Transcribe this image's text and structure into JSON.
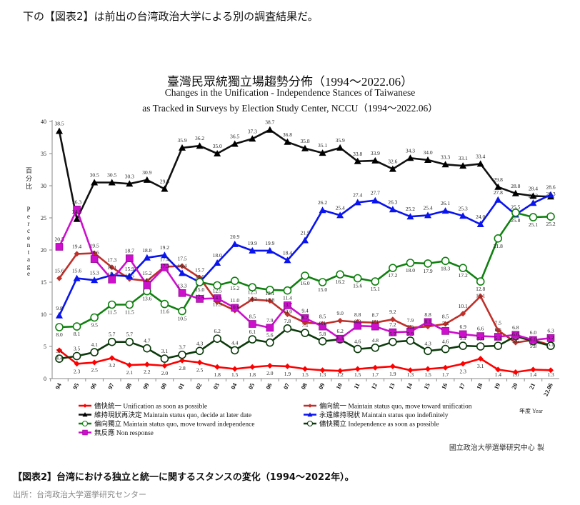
{
  "article": {
    "intro": "下の【図表2】は前出の台湾政治大学による別の調査結果だ。",
    "caption": "【図表2】台湾における独立と統一に関するスタンスの変化（1994〜2022年）。",
    "source": "出所：台湾政治大学選挙研究センター"
  },
  "chart_data": {
    "type": "line",
    "title": "臺灣民眾統獨立場趨勢分佈（1994～2022.06）",
    "subtitle_line1": "Changes in the Unification - Independence Stances of Taiwanese",
    "subtitle_line2": "as Tracked in Surveys by Election Study Center, NCCU（1994～2022.06）",
    "ylabel_zh": "百分比",
    "ylabel_en": "Percentage",
    "xlabel": "年度 Year",
    "credit": "國立政治大學選舉研究中心 製",
    "ylim": [
      0,
      40
    ],
    "yticks": [
      "0",
      "5",
      "10",
      "15",
      "20",
      "25",
      "30",
      "35",
      "40"
    ],
    "grid": false,
    "legend_position": "bottom",
    "categories": [
      "94",
      "95",
      "96",
      "97",
      "98",
      "99",
      "00",
      "01",
      "02",
      "03",
      "04",
      "05",
      "06",
      "07",
      "08",
      "09",
      "10",
      "11",
      "12",
      "13",
      "14",
      "15",
      "16",
      "17",
      "18",
      "19",
      "20",
      "21",
      "22.06"
    ],
    "series": [
      {
        "name": "儘快統一 Unification as soon as possible",
        "color": "#ff0000",
        "marker": "diamond",
        "values": [
          4.4,
          2.3,
          2.5,
          3.2,
          2.1,
          2.2,
          2.0,
          2.8,
          2.5,
          1.8,
          1.5,
          1.8,
          2.0,
          1.9,
          1.5,
          1.3,
          1.2,
          1.5,
          1.7,
          1.9,
          1.3,
          1.5,
          1.7,
          2.3,
          3.1,
          1.4,
          1.0,
          1.4,
          1.3
        ]
      },
      {
        "name": "偏向統一 Maintain status quo, move toward unification",
        "color": "#c0302a",
        "marker": "diamond",
        "values": [
          15.6,
          19.4,
          19.5,
          17.3,
          15.5,
          15.2,
          17.4,
          17.5,
          15.7,
          11.9,
          10.6,
          12.3,
          12.1,
          10.0,
          8.7,
          8.5,
          9.0,
          8.8,
          8.7,
          9.2,
          7.9,
          8.1,
          8.5,
          10.1,
          12.8,
          7.5,
          5.6,
          6.0,
          5.2
        ]
      },
      {
        "name": "維持現狀再決定 Maintain status quo, decide at later date",
        "color": "#111111",
        "marker": "triangle",
        "values": [
          38.5,
          24.8,
          30.5,
          30.5,
          30.3,
          30.9,
          29.5,
          35.9,
          36.2,
          35.0,
          36.5,
          37.3,
          38.7,
          36.8,
          35.8,
          35.1,
          35.9,
          33.8,
          33.9,
          32.6,
          34.3,
          34.0,
          33.3,
          33.1,
          33.4,
          29.8,
          28.8,
          28.4,
          28.3
        ]
      },
      {
        "name": "永遠維持現狀 Maintain status quo indefinitely",
        "color": "#0a14ee",
        "marker": "triangle",
        "values": [
          9.8,
          15.6,
          15.3,
          16.1,
          15.9,
          18.8,
          19.2,
          16.4,
          15.0,
          18.0,
          20.9,
          19.9,
          19.9,
          18.4,
          21.5,
          26.2,
          25.4,
          27.4,
          27.7,
          26.3,
          25.2,
          25.4,
          26.1,
          25.3,
          24.0,
          27.8,
          25.5,
          27.3,
          28.6
        ]
      },
      {
        "name": "偏向獨立 Maintain status quo, move toward independence",
        "color": "#108010",
        "marker": "circle",
        "values": [
          8.0,
          8.1,
          9.5,
          11.5,
          11.5,
          13.6,
          11.6,
          10.5,
          15.0,
          14.5,
          15.2,
          14.2,
          13.8,
          13.7,
          16.0,
          15.0,
          16.2,
          15.6,
          15.1,
          17.2,
          18.0,
          17.9,
          18.3,
          17.2,
          15.1,
          21.8,
          25.8,
          25.1,
          25.2
        ]
      },
      {
        "name": "儘快獨立 Independence as soon as possible",
        "color": "#0c3a0c",
        "marker": "circle",
        "values": [
          3.1,
          3.5,
          4.1,
          5.7,
          5.7,
          4.7,
          3.1,
          3.7,
          4.3,
          6.2,
          4.4,
          6.1,
          5.6,
          7.8,
          7.1,
          5.8,
          6.1,
          4.6,
          4.8,
          5.7,
          5.9,
          4.3,
          4.6,
          5.1,
          5.0,
          5.1,
          6.6,
          5.8,
          5.1
        ]
      },
      {
        "name": "無反應 Non response",
        "color": "#cc10cc",
        "marker": "square",
        "values": [
          20.5,
          26.3,
          18.6,
          15.4,
          18.7,
          14.5,
          17.3,
          13.3,
          12.4,
          12.5,
          11.0,
          8.5,
          7.9,
          11.4,
          9.4,
          8.1,
          6.2,
          8.2,
          8.1,
          7.2,
          7.3,
          8.8,
          7.4,
          6.9,
          6.6,
          6.5,
          6.8,
          6.0,
          6.3
        ]
      }
    ]
  }
}
